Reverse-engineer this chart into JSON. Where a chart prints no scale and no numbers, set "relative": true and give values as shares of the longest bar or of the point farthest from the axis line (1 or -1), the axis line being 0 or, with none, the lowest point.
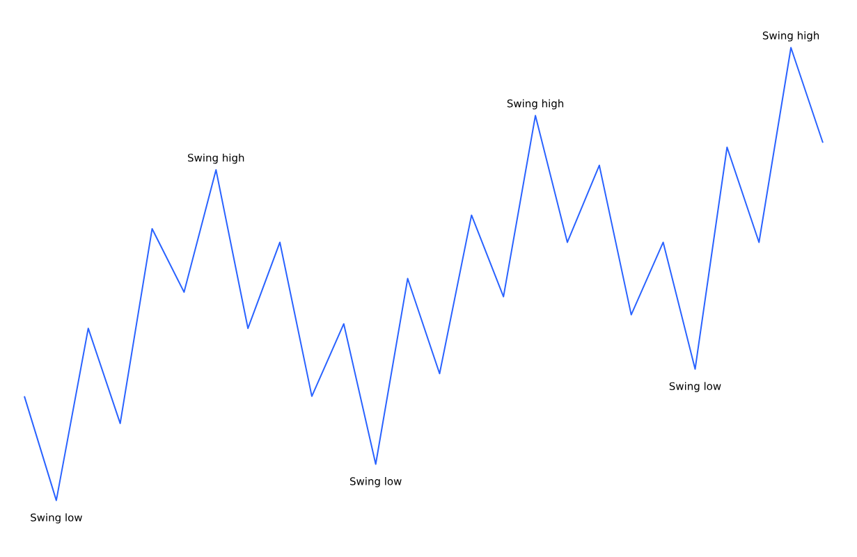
{
  "chart_data": {
    "type": "line",
    "relative": true,
    "color": "#2962ff",
    "categories": [
      null,
      null,
      null,
      null,
      null,
      null,
      null,
      null,
      null,
      null,
      null,
      null,
      null,
      null,
      null,
      null,
      null,
      null,
      null,
      null,
      null,
      null,
      null,
      null,
      null,
      null
    ],
    "values": [
      0.23,
      0,
      0.38,
      0.17,
      0.6,
      0.46,
      0.73,
      0.38,
      0.57,
      0.23,
      0.39,
      0.08,
      0.49,
      0.28,
      0.63,
      0.45,
      0.85,
      0.57,
      0.74,
      0.41,
      0.57,
      0.29,
      0.78,
      0.57,
      1,
      0.79
    ],
    "annotations": [
      {
        "text": "Swing low",
        "y": 0
      },
      {
        "text": "Swing high",
        "y": 0.73
      },
      {
        "text": "Swing low",
        "y": 0.08
      },
      {
        "text": "Swing high",
        "y": 0.85
      },
      {
        "text": "Swing low",
        "y": 0.29
      },
      {
        "text": "Swing high",
        "y": 1
      }
    ]
  }
}
